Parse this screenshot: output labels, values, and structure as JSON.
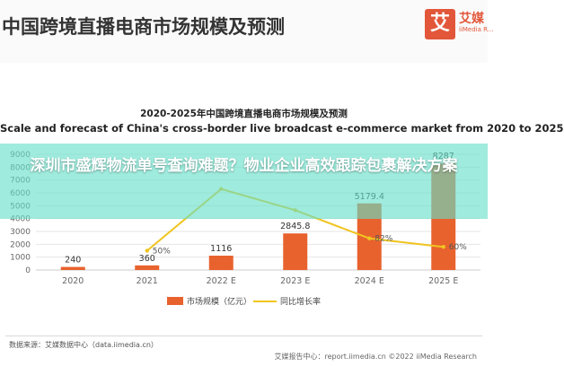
{
  "header": {
    "title": "中国跨境直播电商市场规模及预测",
    "logo_char": "艾",
    "logo_name": "艾媒",
    "logo_sub": "iiMedia R..."
  },
  "chart_title_cn": "2020-2025年中国跨境直播电商市场规模及预测",
  "chart_title_en": "Scale and forecast of China's cross-border live broadcast e-commerce market from 2020 to 2025",
  "overlay": {
    "text": "深圳市盛辉物流单号查询难题？物业企业高效跟踪包裹解决方案",
    "color": "#64dec8"
  },
  "legend": {
    "bar_label": "市场规模（亿元）",
    "line_label": "同比增长率"
  },
  "footer": {
    "source": "数据来源：艾媒数据中心（data.iimedia.cn）",
    "copyright": "艾媒报告中心：report.iimedia.cn  ©2022  iiMedia Research"
  },
  "colors": {
    "bar": "#e8622e",
    "line": "#f0c420",
    "axis_text": "#666666",
    "grid": "#e6e6e6"
  },
  "chart_data": {
    "type": "bar",
    "categories": [
      "2020",
      "2021",
      "2022 E",
      "2023 E",
      "2024 E",
      "2025 E"
    ],
    "series": [
      {
        "name": "市场规模（亿元）",
        "values": [
          240,
          360,
          1116,
          2845.8,
          5179.4,
          8287
        ]
      }
    ],
    "value_labels": [
      "240",
      "360",
      "1116",
      "2845.8",
      "5179.4",
      "8287"
    ],
    "line_series": {
      "name": "同比增长率",
      "values": [
        null,
        50,
        210,
        155,
        82,
        60
      ],
      "labels": [
        "",
        "50%",
        "",
        "",
        "82%",
        "60%"
      ]
    },
    "yticks": [
      0,
      1000,
      2000,
      3000,
      4000,
      5000,
      6000,
      7000,
      8000,
      9000
    ],
    "ylim": [
      0,
      9000
    ],
    "line_ylim": [
      0,
      300
    ],
    "grid": true,
    "legend_position": "bottom"
  }
}
